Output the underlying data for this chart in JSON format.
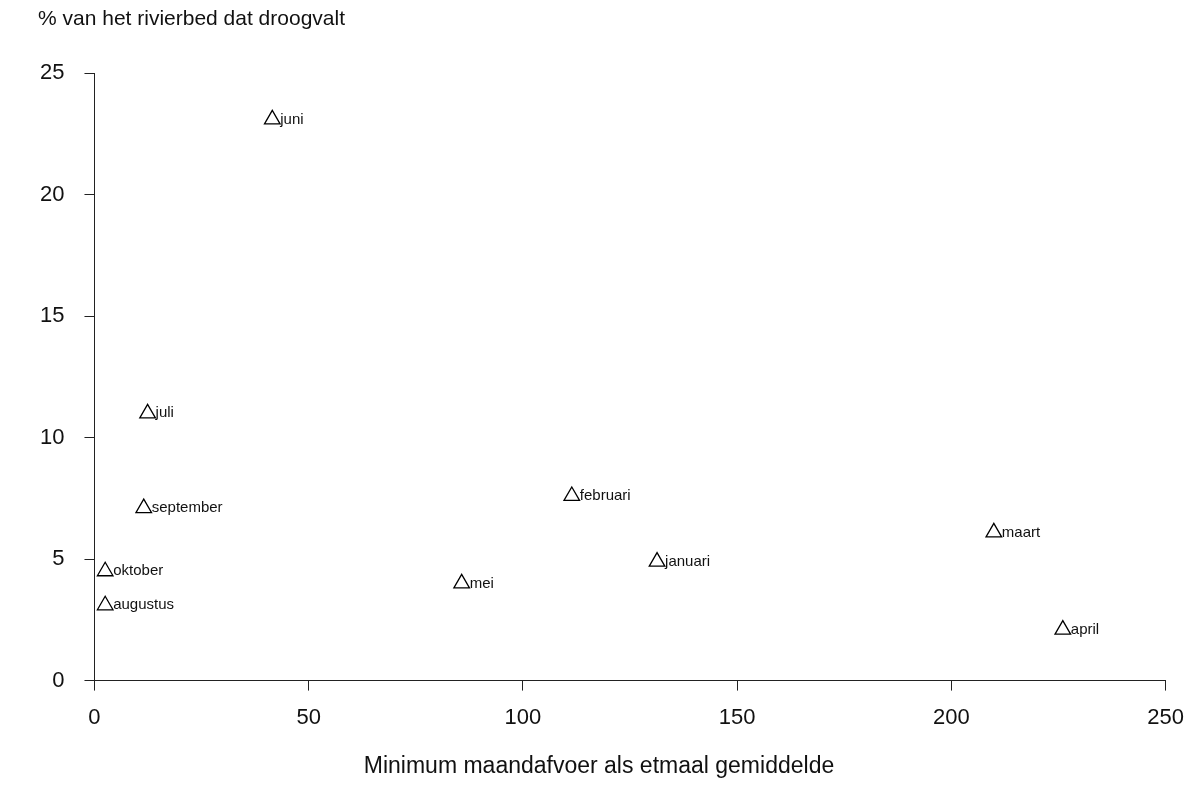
{
  "chart_data": {
    "type": "scatter",
    "ylabel": "% van het rivierbed dat droogvalt",
    "xlabel": "Minimum maandafvoer als etmaal gemiddelde",
    "x": [
      41.5,
      12.4,
      11.5,
      2.5,
      2.5,
      85.7,
      111.4,
      131.3,
      209.9,
      226
    ],
    "values": [
      23.1,
      11,
      7.1,
      4.5,
      3.1,
      4,
      7.6,
      4.9,
      6.1,
      2.1
    ],
    "color": "#000000",
    "marker": "triangle",
    "grid": false,
    "legend": false,
    "xlim": [
      0,
      250
    ],
    "xticks": [
      0,
      50,
      100,
      150,
      200,
      250
    ],
    "ylim": [
      0,
      25
    ],
    "yticks": [
      0,
      5,
      10,
      15,
      20,
      25
    ],
    "annotations": [
      {
        "text": "juni",
        "x": 41.5,
        "y": 23.1
      },
      {
        "text": "juli",
        "x": 12.4,
        "y": 11
      },
      {
        "text": "september",
        "x": 11.5,
        "y": 7.1
      },
      {
        "text": "oktober",
        "x": 2.5,
        "y": 4.5
      },
      {
        "text": "augustus",
        "x": 2.5,
        "y": 3.1
      },
      {
        "text": "mei",
        "x": 85.7,
        "y": 4
      },
      {
        "text": "februari",
        "x": 111.4,
        "y": 7.6
      },
      {
        "text": "januari",
        "x": 131.3,
        "y": 4.9
      },
      {
        "text": "maart",
        "x": 209.9,
        "y": 6.1
      },
      {
        "text": "april",
        "x": 226,
        "y": 2.1
      }
    ]
  }
}
